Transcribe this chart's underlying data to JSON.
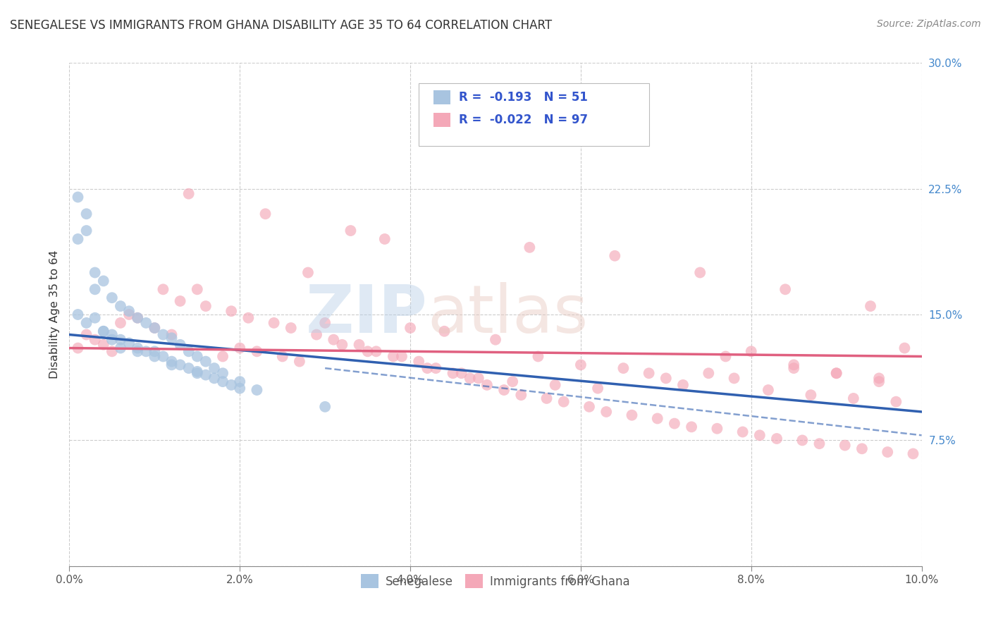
{
  "title": "SENEGALESE VS IMMIGRANTS FROM GHANA DISABILITY AGE 35 TO 64 CORRELATION CHART",
  "source_text": "Source: ZipAtlas.com",
  "ylabel": "Disability Age 35 to 64",
  "xlim": [
    0.0,
    0.1
  ],
  "ylim": [
    0.0,
    0.3
  ],
  "xtick_labels": [
    "0.0%",
    "2.0%",
    "4.0%",
    "6.0%",
    "8.0%",
    "10.0%"
  ],
  "xtick_vals": [
    0.0,
    0.02,
    0.04,
    0.06,
    0.08,
    0.1
  ],
  "ytick_labels": [
    "",
    "7.5%",
    "15.0%",
    "22.5%",
    "30.0%"
  ],
  "ytick_vals": [
    0.0,
    0.075,
    0.15,
    0.225,
    0.3
  ],
  "legend_label1": "Senegalese",
  "legend_label2": "Immigrants from Ghana",
  "R1": -0.193,
  "N1": 51,
  "R2": -0.022,
  "N2": 97,
  "color1": "#a8c4e0",
  "color2": "#f4a8b8",
  "line1_color": "#3060b0",
  "line2_color": "#e06080",
  "line1_style": "solid",
  "line2_style": "solid",
  "sen_x": [
    0.001,
    0.002,
    0.003,
    0.004,
    0.005,
    0.006,
    0.007,
    0.008,
    0.009,
    0.01,
    0.011,
    0.012,
    0.013,
    0.014,
    0.015,
    0.016,
    0.017,
    0.018,
    0.019,
    0.02,
    0.001,
    0.002,
    0.003,
    0.004,
    0.005,
    0.006,
    0.007,
    0.008,
    0.009,
    0.01,
    0.011,
    0.012,
    0.013,
    0.014,
    0.015,
    0.016,
    0.017,
    0.018,
    0.02,
    0.022,
    0.001,
    0.002,
    0.003,
    0.004,
    0.005,
    0.006,
    0.008,
    0.01,
    0.012,
    0.015,
    0.03
  ],
  "sen_y": [
    0.15,
    0.145,
    0.148,
    0.14,
    0.138,
    0.135,
    0.133,
    0.13,
    0.128,
    0.128,
    0.125,
    0.122,
    0.12,
    0.118,
    0.116,
    0.114,
    0.112,
    0.11,
    0.108,
    0.106,
    0.195,
    0.2,
    0.175,
    0.17,
    0.16,
    0.155,
    0.152,
    0.148,
    0.145,
    0.142,
    0.138,
    0.136,
    0.132,
    0.128,
    0.125,
    0.122,
    0.118,
    0.115,
    0.11,
    0.105,
    0.22,
    0.21,
    0.165,
    0.14,
    0.135,
    0.13,
    0.128,
    0.125,
    0.12,
    0.115,
    0.095
  ],
  "gha_x": [
    0.001,
    0.003,
    0.005,
    0.007,
    0.01,
    0.012,
    0.015,
    0.018,
    0.02,
    0.022,
    0.025,
    0.027,
    0.03,
    0.032,
    0.035,
    0.038,
    0.04,
    0.042,
    0.044,
    0.046,
    0.048,
    0.05,
    0.052,
    0.055,
    0.057,
    0.06,
    0.062,
    0.065,
    0.068,
    0.07,
    0.072,
    0.075,
    0.078,
    0.08,
    0.082,
    0.085,
    0.087,
    0.09,
    0.092,
    0.095,
    0.097,
    0.098,
    0.002,
    0.004,
    0.006,
    0.008,
    0.011,
    0.013,
    0.016,
    0.019,
    0.021,
    0.024,
    0.026,
    0.029,
    0.031,
    0.034,
    0.036,
    0.039,
    0.041,
    0.043,
    0.045,
    0.047,
    0.049,
    0.051,
    0.053,
    0.056,
    0.058,
    0.061,
    0.063,
    0.066,
    0.069,
    0.071,
    0.073,
    0.076,
    0.079,
    0.081,
    0.083,
    0.086,
    0.088,
    0.091,
    0.093,
    0.096,
    0.099,
    0.014,
    0.023,
    0.033,
    0.037,
    0.054,
    0.064,
    0.074,
    0.084,
    0.094,
    0.028,
    0.077,
    0.085,
    0.09,
    0.095
  ],
  "gha_y": [
    0.13,
    0.135,
    0.128,
    0.15,
    0.142,
    0.138,
    0.165,
    0.125,
    0.13,
    0.128,
    0.125,
    0.122,
    0.145,
    0.132,
    0.128,
    0.125,
    0.142,
    0.118,
    0.14,
    0.115,
    0.112,
    0.135,
    0.11,
    0.125,
    0.108,
    0.12,
    0.106,
    0.118,
    0.115,
    0.112,
    0.108,
    0.115,
    0.112,
    0.128,
    0.105,
    0.118,
    0.102,
    0.115,
    0.1,
    0.112,
    0.098,
    0.13,
    0.138,
    0.132,
    0.145,
    0.148,
    0.165,
    0.158,
    0.155,
    0.152,
    0.148,
    0.145,
    0.142,
    0.138,
    0.135,
    0.132,
    0.128,
    0.125,
    0.122,
    0.118,
    0.115,
    0.112,
    0.108,
    0.105,
    0.102,
    0.1,
    0.098,
    0.095,
    0.092,
    0.09,
    0.088,
    0.085,
    0.083,
    0.082,
    0.08,
    0.078,
    0.076,
    0.075,
    0.073,
    0.072,
    0.07,
    0.068,
    0.067,
    0.222,
    0.21,
    0.2,
    0.195,
    0.19,
    0.185,
    0.175,
    0.165,
    0.155,
    0.175,
    0.125,
    0.12,
    0.115,
    0.11
  ]
}
